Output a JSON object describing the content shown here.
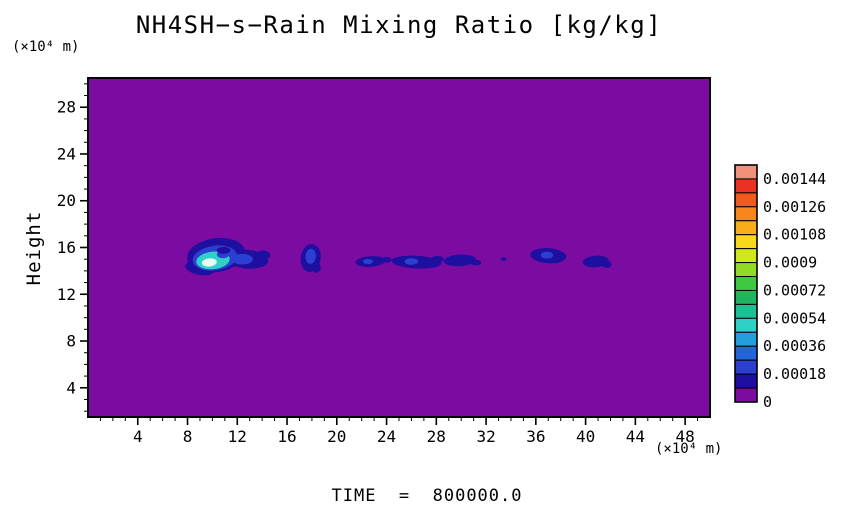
{
  "title": "NH4SH−s−Rain Mixing Ratio [kg/kg]",
  "y_axis_unit": "(×10⁴ m)",
  "y_axis_title": "Height",
  "x_axis_unit": "(×10⁴ m)",
  "time_label": "TIME  =  800000.0",
  "colorbar": {
    "position": "right",
    "labels_top_to_bottom": [
      "0.00144",
      "0.00126",
      "0.00108",
      "0.0009",
      "0.00072",
      "0.00054",
      "0.00036",
      "0.00018",
      "0"
    ],
    "colors_top_to_bottom": [
      "#F0907A",
      "#E93223",
      "#F25A1C",
      "#F6871B",
      "#F9AE18",
      "#F6D91A",
      "#CFE81C",
      "#8FDC22",
      "#3FC93F",
      "#1FB45F",
      "#1FBF96",
      "#2FD0C8",
      "#259FDC",
      "#2565DC",
      "#2B3FD1",
      "#1E0FA0",
      "#7B0BA1"
    ]
  },
  "chart_data": {
    "type": "heatmap",
    "title": "NH4SH−s−Rain Mixing Ratio [kg/kg]",
    "xlabel": "(×10⁴ m)",
    "ylabel": "Height (×10⁴ m)",
    "units": "kg/kg",
    "time": "800000.0",
    "x_range": [
      0,
      50
    ],
    "y_range": [
      1.5,
      30.5
    ],
    "x_ticks": [
      4,
      8,
      12,
      16,
      20,
      24,
      28,
      32,
      36,
      40,
      44,
      48
    ],
    "y_ticks": [
      4,
      8,
      12,
      16,
      20,
      24,
      28
    ],
    "labeled_levels": [
      0,
      0.00018,
      0.00036,
      0.00054,
      0.00072,
      0.0009,
      0.00108,
      0.00126,
      0.00144
    ],
    "background_value": 0,
    "background_color": "#7B0BA1",
    "grid": false,
    "legend_position": "right",
    "features": [
      {
        "band_min_value": 9e-05,
        "color": "#1E0FA0",
        "ellipses": [
          [
            10.3,
            15.35,
            2.35,
            1.45,
            -8
          ],
          [
            12.8,
            15.0,
            1.7,
            0.8,
            5
          ],
          [
            14.1,
            15.35,
            0.55,
            0.4,
            0
          ],
          [
            9.0,
            14.25,
            1.2,
            0.6,
            10
          ],
          [
            17.9,
            15.1,
            0.8,
            1.2,
            8
          ],
          [
            18.35,
            14.3,
            0.35,
            0.45,
            0
          ],
          [
            22.7,
            14.8,
            1.2,
            0.45,
            -4
          ],
          [
            24.0,
            14.95,
            0.4,
            0.25,
            0
          ],
          [
            26.4,
            14.75,
            2.0,
            0.55,
            3
          ],
          [
            28.1,
            15.0,
            0.5,
            0.3,
            0
          ],
          [
            29.9,
            14.9,
            1.3,
            0.5,
            -3
          ],
          [
            31.2,
            14.7,
            0.4,
            0.25,
            0
          ],
          [
            33.4,
            15.0,
            0.25,
            0.15,
            0
          ],
          [
            37.0,
            15.3,
            1.45,
            0.65,
            4
          ],
          [
            40.8,
            14.8,
            1.05,
            0.5,
            -5
          ],
          [
            41.7,
            14.55,
            0.4,
            0.3,
            0
          ]
        ]
      },
      {
        "band_min_value": 0.00027,
        "color": "#2B3FD1",
        "ellipses": [
          [
            10.2,
            15.1,
            1.8,
            1.05,
            -8
          ],
          [
            12.4,
            15.0,
            0.85,
            0.45,
            0
          ],
          [
            17.9,
            15.25,
            0.42,
            0.65,
            5
          ],
          [
            22.5,
            14.8,
            0.4,
            0.22,
            0
          ],
          [
            26.0,
            14.8,
            0.55,
            0.28,
            0
          ],
          [
            36.9,
            15.35,
            0.5,
            0.3,
            0
          ]
        ]
      },
      {
        "band_min_value": 0.00045,
        "color": "#2FD0C8",
        "ellipses": [
          [
            10.05,
            14.9,
            1.35,
            0.75,
            -6
          ]
        ]
      },
      {
        "band_min_value": 0.0009,
        "color": "#E6FDF4",
        "ellipses": [
          [
            9.75,
            14.72,
            0.6,
            0.35,
            -6
          ]
        ]
      },
      {
        "band_min_value": 0.00027,
        "color": "#2B3FD1",
        "ellipses": [
          [
            10.85,
            15.4,
            0.5,
            0.32,
            0
          ]
        ]
      },
      {
        "band_min_value": 9e-05,
        "color": "#1E0FA0",
        "ellipses": [
          [
            10.9,
            15.75,
            0.55,
            0.3,
            0
          ]
        ]
      }
    ]
  }
}
